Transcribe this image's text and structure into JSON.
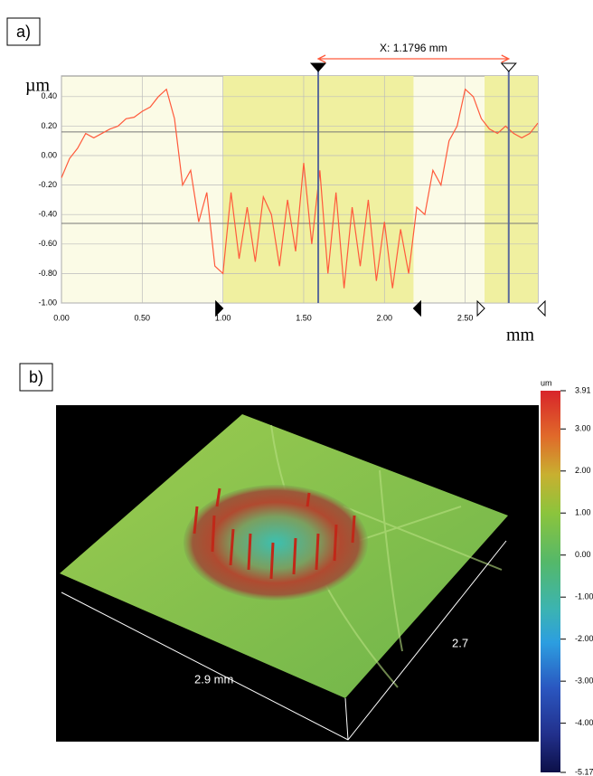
{
  "chart_data": [
    {
      "type": "line",
      "panel_label": "a)",
      "y_label": "µm",
      "x_label": "mm",
      "annotation": "X: 1.1796 mm",
      "xlim": [
        0,
        2.95
      ],
      "ylim": [
        -1,
        0.54
      ],
      "xticks": [
        {
          "value": 0,
          "label": "0.00"
        },
        {
          "value": 0.5,
          "label": "0.50"
        },
        {
          "value": 1,
          "label": "1.00"
        },
        {
          "value": 1.5,
          "label": "1.50"
        },
        {
          "value": 2,
          "label": "2.00"
        },
        {
          "value": 2.5,
          "label": "2.50"
        }
      ],
      "yticks": [
        {
          "value": -1,
          "label": "-1.00"
        },
        {
          "value": -0.8,
          "label": "-0.80"
        },
        {
          "value": -0.6,
          "label": "-0.60"
        },
        {
          "value": -0.4,
          "label": "-0.40"
        },
        {
          "value": -0.2,
          "label": "-0.20"
        },
        {
          "value": 0,
          "label": "0.00"
        },
        {
          "value": 0.2,
          "label": "0.20"
        },
        {
          "value": 0.4,
          "label": "0.40"
        }
      ],
      "grid": true,
      "highlight_ranges": [
        [
          1.0,
          2.18
        ],
        [
          2.62,
          2.95
        ]
      ],
      "cursors": [
        1.59,
        2.7696
      ],
      "hlines": [
        0.16,
        -0.46
      ],
      "x": [
        0,
        0.05,
        0.1,
        0.15,
        0.2,
        0.25,
        0.3,
        0.35,
        0.4,
        0.45,
        0.5,
        0.55,
        0.6,
        0.65,
        0.7,
        0.75,
        0.8,
        0.85,
        0.9,
        0.95,
        1,
        1.05,
        1.1,
        1.15,
        1.2,
        1.25,
        1.3,
        1.35,
        1.4,
        1.45,
        1.5,
        1.55,
        1.6,
        1.65,
        1.7,
        1.75,
        1.8,
        1.85,
        1.9,
        1.95,
        2,
        2.05,
        2.1,
        2.15,
        2.2,
        2.25,
        2.3,
        2.35,
        2.4,
        2.45,
        2.5,
        2.55,
        2.6,
        2.65,
        2.7,
        2.75,
        2.8,
        2.85,
        2.9,
        2.95
      ],
      "series": [
        {
          "color": "#ff5a3c",
          "values": [
            -0.15,
            -0.02,
            0.05,
            0.15,
            0.12,
            0.15,
            0.18,
            0.2,
            0.25,
            0.26,
            0.3,
            0.33,
            0.4,
            0.45,
            0.25,
            -0.2,
            -0.1,
            -0.45,
            -0.25,
            -0.75,
            -0.8,
            -0.25,
            -0.7,
            -0.35,
            -0.72,
            -0.28,
            -0.4,
            -0.75,
            -0.3,
            -0.65,
            -0.05,
            -0.6,
            -0.1,
            -0.8,
            -0.25,
            -0.9,
            -0.35,
            -0.75,
            -0.3,
            -0.85,
            -0.45,
            -0.9,
            -0.5,
            -0.8,
            -0.35,
            -0.4,
            -0.1,
            -0.2,
            0.1,
            0.2,
            0.45,
            0.4,
            0.25,
            0.18,
            0.15,
            0.2,
            0.15,
            0.12,
            0.15,
            0.22
          ]
        }
      ]
    },
    {
      "type": "surface",
      "panel_label": "b)",
      "width_label": "2.9 mm",
      "depth_label": "2.7",
      "colorbar": {
        "unit": "um",
        "clim": [
          -5.17,
          3.91
        ],
        "ticks": [
          3.91,
          {
            "value": 3,
            "label": "3.00"
          },
          {
            "value": 2,
            "label": "2.00"
          },
          {
            "value": 1,
            "label": "1.00"
          },
          {
            "value": 0,
            "label": "0.00"
          },
          {
            "value": -1,
            "label": "-1.00"
          },
          {
            "value": -2,
            "label": "-2.00"
          },
          {
            "value": -3,
            "label": "-3.00"
          },
          {
            "value": -4,
            "label": "-4.00"
          },
          -5.17
        ]
      }
    }
  ]
}
